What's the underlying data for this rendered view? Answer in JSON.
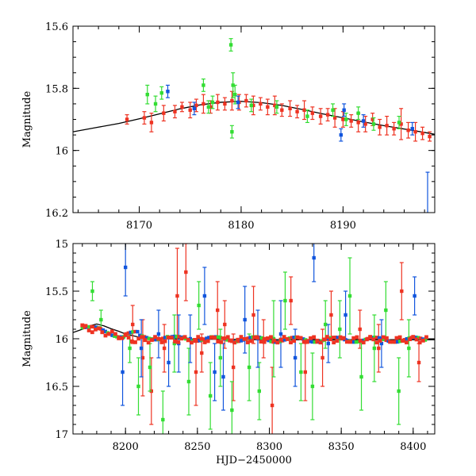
{
  "chart_data": [
    {
      "type": "scatter",
      "panel": "top",
      "title": "",
      "xlabel": "",
      "ylabel": "Magnitude",
      "xlim": [
        8163.5,
        8199
      ],
      "ylim": [
        15.6,
        16.2
      ],
      "y_inverted": true,
      "xticks": [
        8170,
        8180,
        8190
      ],
      "yticks": [
        15.6,
        15.8,
        16,
        16.2
      ],
      "ytick_labels": [
        "15.6",
        "15.8",
        "16",
        "16.2"
      ],
      "grid": false,
      "colors": {
        "red": "#ee3322",
        "green": "#33dd33",
        "blue": "#1155dd",
        "model": "#000000"
      },
      "model_curve": {
        "x": [
          8163.5,
          8166,
          8168,
          8170,
          8172,
          8174,
          8176,
          8178,
          8180,
          8182,
          8184,
          8186,
          8188,
          8190,
          8192,
          8194,
          8196,
          8198,
          8199
        ],
        "y": [
          15.94,
          15.925,
          15.913,
          15.898,
          15.882,
          15.866,
          15.853,
          15.845,
          15.842,
          15.846,
          15.855,
          15.868,
          15.882,
          15.895,
          15.908,
          15.92,
          15.931,
          15.942,
          15.948
        ]
      },
      "series": [
        {
          "color": "red",
          "x": [
            8168.8,
            8170.5,
            8171.2,
            8172.4,
            8173.5,
            8174.2,
            8175.0,
            8175.6,
            8176.3,
            8177.0,
            8177.7,
            8178.4,
            8179.1,
            8179.8,
            8180.5,
            8181.2,
            8181.9,
            8182.6,
            8183.3,
            8184.0,
            8184.8,
            8185.5,
            8186.2,
            8187.0,
            8187.8,
            8188.5,
            8189.2,
            8190.0,
            8190.8,
            8191.5,
            8192.2,
            8192.9,
            8193.6,
            8194.3,
            8195.0,
            8195.7,
            8196.4,
            8197.1,
            8197.8,
            8198.5
          ],
          "y": [
            15.9,
            15.895,
            15.91,
            15.88,
            15.875,
            15.86,
            15.87,
            15.855,
            15.85,
            15.86,
            15.845,
            15.85,
            15.84,
            15.845,
            15.84,
            15.855,
            15.85,
            15.86,
            15.855,
            15.87,
            15.865,
            15.875,
            15.87,
            15.88,
            15.89,
            15.885,
            15.895,
            15.9,
            15.905,
            15.91,
            15.915,
            15.9,
            15.925,
            15.92,
            15.93,
            15.915,
            15.935,
            15.94,
            15.945,
            15.955
          ],
          "err": [
            0.015,
            0.02,
            0.03,
            0.025,
            0.02,
            0.015,
            0.025,
            0.02,
            0.03,
            0.02,
            0.025,
            0.02,
            0.03,
            0.025,
            0.02,
            0.03,
            0.02,
            0.025,
            0.03,
            0.02,
            0.025,
            0.02,
            0.03,
            0.02,
            0.025,
            0.02,
            0.03,
            0.025,
            0.02,
            0.03,
            0.025,
            0.02,
            0.025,
            0.03,
            0.02,
            0.05,
            0.025,
            0.03,
            0.02,
            0.015
          ]
        },
        {
          "color": "green",
          "x": [
            8170.8,
            8171.6,
            8172.2,
            8176.3,
            8176.8,
            8177.2,
            8179.0,
            8179.2,
            8179.1,
            8179.4,
            8181.0,
            8183.5,
            8186.5,
            8189.0,
            8190.3,
            8191.5,
            8193.0,
            8195.5
          ],
          "y": [
            15.82,
            15.85,
            15.815,
            15.79,
            15.86,
            15.845,
            15.66,
            15.79,
            15.94,
            15.82,
            15.855,
            15.86,
            15.89,
            15.87,
            15.9,
            15.88,
            15.915,
            15.91
          ],
          "err": [
            0.03,
            0.025,
            0.02,
            0.02,
            0.02,
            0.02,
            0.02,
            0.04,
            0.02,
            0.03,
            0.02,
            0.02,
            0.02,
            0.02,
            0.02,
            0.02,
            0.02,
            0.02
          ]
        },
        {
          "color": "blue",
          "x": [
            8172.8,
            8175.4,
            8179.7,
            8189.8,
            8190.1,
            8192.0,
            8196.8,
            8198.3
          ],
          "y": [
            15.81,
            15.865,
            15.845,
            15.95,
            15.87,
            15.905,
            15.93,
            16.21
          ],
          "err": [
            0.02,
            0.02,
            0.02,
            0.02,
            0.02,
            0.02,
            0.02,
            0.14
          ]
        }
      ]
    },
    {
      "type": "scatter",
      "panel": "bottom",
      "title": "",
      "xlabel": "HJD−2450000",
      "ylabel": "Magnitude",
      "xlim": [
        8163.5,
        8415
      ],
      "ylim": [
        15,
        17
      ],
      "y_inverted": true,
      "xticks": [
        8200,
        8250,
        8300,
        8350,
        8400
      ],
      "yticks": [
        15,
        15.5,
        16,
        16.5,
        17
      ],
      "ytick_labels": [
        "15",
        "15.5",
        "16",
        "16.5",
        "17"
      ],
      "grid": false,
      "colors": {
        "red": "#ee3322",
        "green": "#33dd33",
        "blue": "#1155dd",
        "model": "#000000"
      },
      "model_curve": {
        "x": [
          8163.5,
          8170,
          8175,
          8180,
          8185,
          8190,
          8195,
          8200,
          8210,
          8230,
          8260,
          8300,
          8350,
          8400,
          8415
        ],
        "y": [
          15.935,
          15.9,
          15.865,
          15.845,
          15.865,
          15.895,
          15.92,
          15.95,
          15.985,
          16.0,
          16.005,
          16.01,
          16.01,
          16.01,
          16.01
        ]
      },
      "series": [
        {
          "color": "red",
          "x": [
            8205,
            8212,
            8218,
            8227,
            8236,
            8242,
            8249,
            8253,
            8264,
            8269,
            8275,
            8289,
            8296,
            8302,
            8315,
            8325,
            8337,
            8343,
            8363,
            8376,
            8392,
            8404
          ],
          "y": [
            15.85,
            16.2,
            16.55,
            16.1,
            15.55,
            15.3,
            16.35,
            16.15,
            15.7,
            15.85,
            16.3,
            15.75,
            16.0,
            16.7,
            15.6,
            16.35,
            16.2,
            15.75,
            15.9,
            16.1,
            15.5,
            16.25
          ],
          "err": [
            0.2,
            0.4,
            0.35,
            0.25,
            0.5,
            0.3,
            0.35,
            0.2,
            0.3,
            0.25,
            0.35,
            0.3,
            0.2,
            0.4,
            0.25,
            0.3,
            0.3,
            0.25,
            0.2,
            0.25,
            0.3,
            0.2
          ]
        },
        {
          "color": "green",
          "x": [
            8177,
            8183,
            8203,
            8209,
            8217,
            8226,
            8234,
            8244,
            8251,
            8259,
            8266,
            8274,
            8286,
            8293,
            8303,
            8311,
            8322,
            8330,
            8339,
            8349,
            8356,
            8364,
            8373,
            8381,
            8390,
            8397
          ],
          "y": [
            15.5,
            15.8,
            16.1,
            16.5,
            16.3,
            16.85,
            16.05,
            16.45,
            15.65,
            16.6,
            16.2,
            16.75,
            16.3,
            16.55,
            16.0,
            15.6,
            16.35,
            16.5,
            15.85,
            15.9,
            15.55,
            16.4,
            16.1,
            15.7,
            16.55,
            16.1
          ],
          "err": [
            0.1,
            0.1,
            0.15,
            0.3,
            0.25,
            0.3,
            0.3,
            0.35,
            0.25,
            0.35,
            0.3,
            0.3,
            0.35,
            0.3,
            0.4,
            0.3,
            0.3,
            0.35,
            0.25,
            0.3,
            0.4,
            0.35,
            0.35,
            0.3,
            0.35,
            0.3
          ]
        },
        {
          "color": "blue",
          "x": [
            8198,
            8200,
            8211,
            8223,
            8230,
            8237,
            8245,
            8255,
            8262,
            8268,
            8283,
            8292,
            8308,
            8318,
            8331,
            8341,
            8353,
            8378,
            8401
          ],
          "y": [
            16.35,
            15.25,
            16.1,
            15.95,
            16.25,
            16.05,
            16.0,
            15.55,
            16.35,
            16.4,
            15.8,
            16.0,
            15.95,
            16.2,
            15.15,
            16.05,
            15.75,
            16.05,
            15.55
          ],
          "err": [
            0.35,
            0.3,
            0.3,
            0.25,
            0.25,
            0.3,
            0.25,
            0.3,
            0.3,
            0.35,
            0.35,
            0.3,
            0.35,
            0.3,
            0.25,
            0.2,
            0.25,
            0.25,
            0.2
          ]
        }
      ]
    }
  ]
}
